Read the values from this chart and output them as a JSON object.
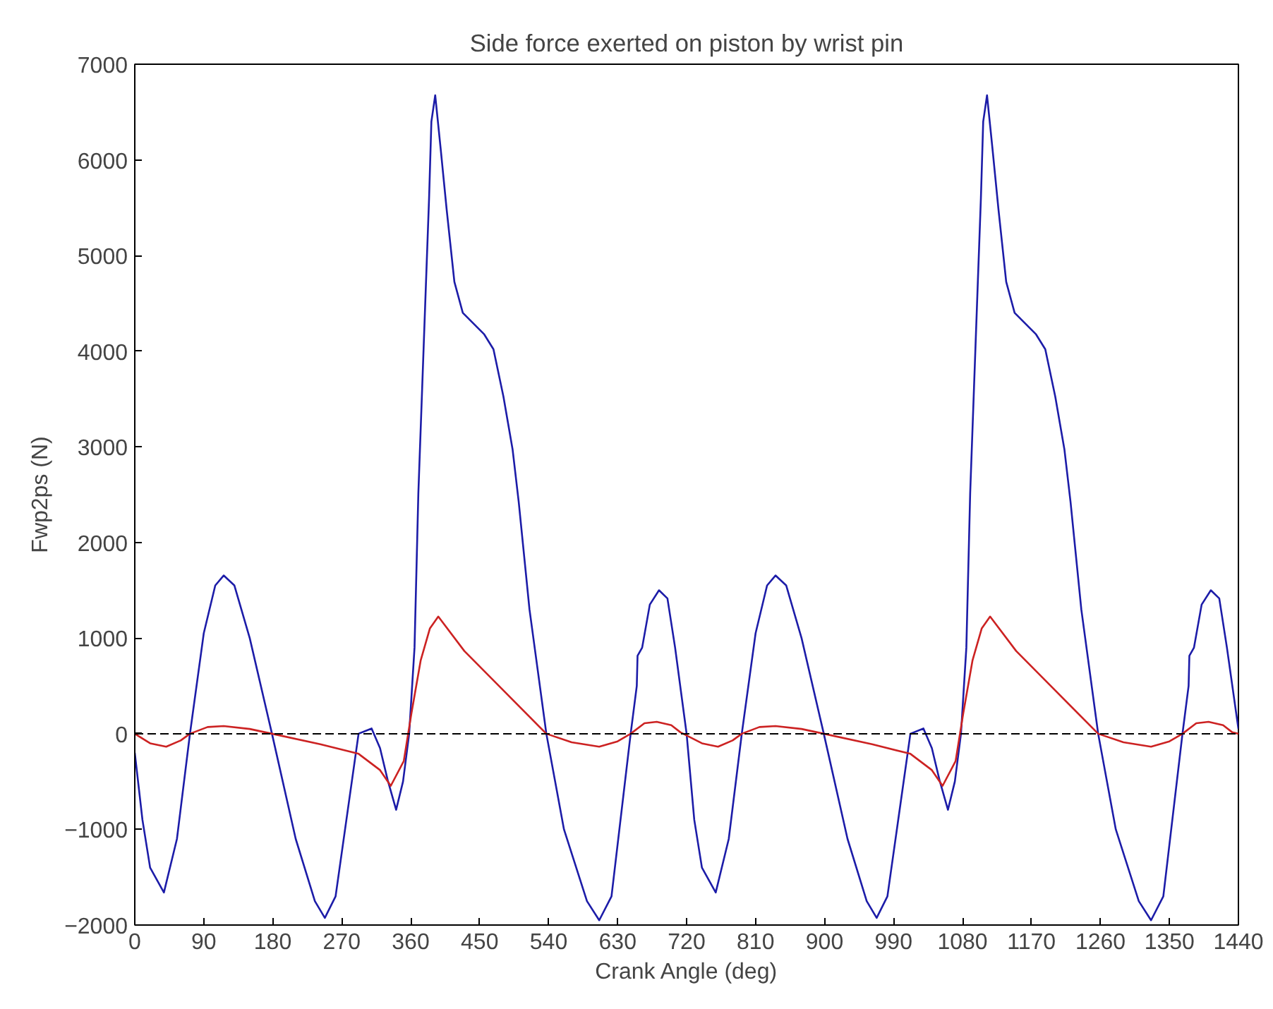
{
  "chart_data": {
    "type": "line",
    "title": "Side force exerted on piston by wrist pin",
    "xlabel": "Crank Angle (deg)",
    "ylabel": "Fwp2ps (N)",
    "xlim": [
      0,
      1440
    ],
    "xticks": [
      0,
      90,
      180,
      270,
      360,
      450,
      540,
      630,
      720,
      810,
      900,
      990,
      1080,
      1170,
      1260,
      1350,
      1440
    ],
    "ylim": [
      -2000,
      7000
    ],
    "yticks": [
      -2000,
      -1000,
      0,
      1000,
      2000,
      3000,
      4000,
      5000,
      6000,
      7000
    ],
    "grid": false,
    "marker": "none",
    "line_style": "solid",
    "ref_lines": [
      {
        "axis": "y",
        "value": 0,
        "label": null,
        "color": "#000000",
        "line_style": "dashed"
      }
    ],
    "series": [
      {
        "color": "#1c1ca8",
        "x": [
          0,
          10,
          20,
          38,
          55,
          72,
          90,
          105,
          116,
          130,
          150,
          179,
          210,
          235,
          248,
          262,
          292,
          309,
          320,
          330,
          341,
          350,
          358,
          365,
          370,
          375,
          380,
          384,
          387,
          392,
          399,
          407,
          417,
          428,
          456,
          468,
          481,
          493,
          501,
          515,
          537,
          560,
          590,
          606,
          622,
          647,
          655,
          656,
          662,
          672,
          684,
          695,
          705,
          720,
          730,
          740,
          758,
          775,
          792,
          810,
          825,
          836,
          850,
          870,
          899,
          930,
          955,
          968,
          982,
          1012,
          1029,
          1040,
          1050,
          1061,
          1070,
          1078,
          1085,
          1090,
          1095,
          1100,
          1104,
          1107,
          1112,
          1119,
          1127,
          1137,
          1148,
          1176,
          1188,
          1201,
          1213,
          1221,
          1235,
          1257,
          1280,
          1310,
          1326,
          1342,
          1367,
          1375,
          1376,
          1382,
          1392,
          1404,
          1415,
          1425,
          1440
        ],
        "values": [
          -200,
          -900,
          -1400,
          -1660,
          -1100,
          0,
          1050,
          1550,
          1655,
          1550,
          1000,
          0,
          -1100,
          -1750,
          -1925,
          -1700,
          0,
          55,
          -150,
          -485,
          -795,
          -500,
          0,
          900,
          2515,
          3620,
          4725,
          5600,
          6400,
          6675,
          6125,
          5475,
          4725,
          4400,
          4175,
          4020,
          3525,
          2970,
          2420,
          1300,
          0,
          -1000,
          -1750,
          -1950,
          -1700,
          0,
          500,
          815,
          900,
          1350,
          1500,
          1415,
          900,
          0,
          -900,
          -1400,
          -1660,
          -1100,
          0,
          1050,
          1550,
          1655,
          1550,
          1000,
          0,
          -1100,
          -1750,
          -1925,
          -1700,
          0,
          55,
          -150,
          -485,
          -795,
          -500,
          0,
          900,
          2515,
          3620,
          4725,
          5600,
          6400,
          6675,
          6125,
          5475,
          4725,
          4400,
          4175,
          4020,
          3525,
          2970,
          2420,
          1300,
          0,
          -1000,
          -1750,
          -1950,
          -1700,
          0,
          500,
          815,
          900,
          1350,
          1500,
          1415,
          900,
          50
        ]
      },
      {
        "color": "#cc2222",
        "x": [
          0,
          20,
          41,
          60,
          72,
          95,
          116,
          150,
          179,
          242,
          292,
          320,
          334,
          351,
          361,
          373,
          385,
          396,
          430,
          537,
          570,
          606,
          630,
          647,
          665,
          681,
          700,
          712,
          740,
          761,
          780,
          792,
          815,
          836,
          870,
          899,
          962,
          1012,
          1040,
          1054,
          1071,
          1081,
          1093,
          1105,
          1116,
          1150,
          1257,
          1290,
          1326,
          1350,
          1367,
          1385,
          1401,
          1420,
          1432,
          1440
        ],
        "values": [
          0,
          -100,
          -135,
          -70,
          0,
          70,
          80,
          50,
          0,
          -110,
          -210,
          -380,
          -545,
          -285,
          215,
          765,
          1100,
          1225,
          865,
          0,
          -90,
          -135,
          -80,
          0,
          110,
          125,
          90,
          15,
          -100,
          -135,
          -70,
          0,
          70,
          80,
          50,
          0,
          -110,
          -210,
          -380,
          -545,
          -285,
          215,
          765,
          1100,
          1225,
          865,
          0,
          -90,
          -135,
          -80,
          0,
          110,
          125,
          90,
          15,
          0
        ]
      }
    ]
  }
}
